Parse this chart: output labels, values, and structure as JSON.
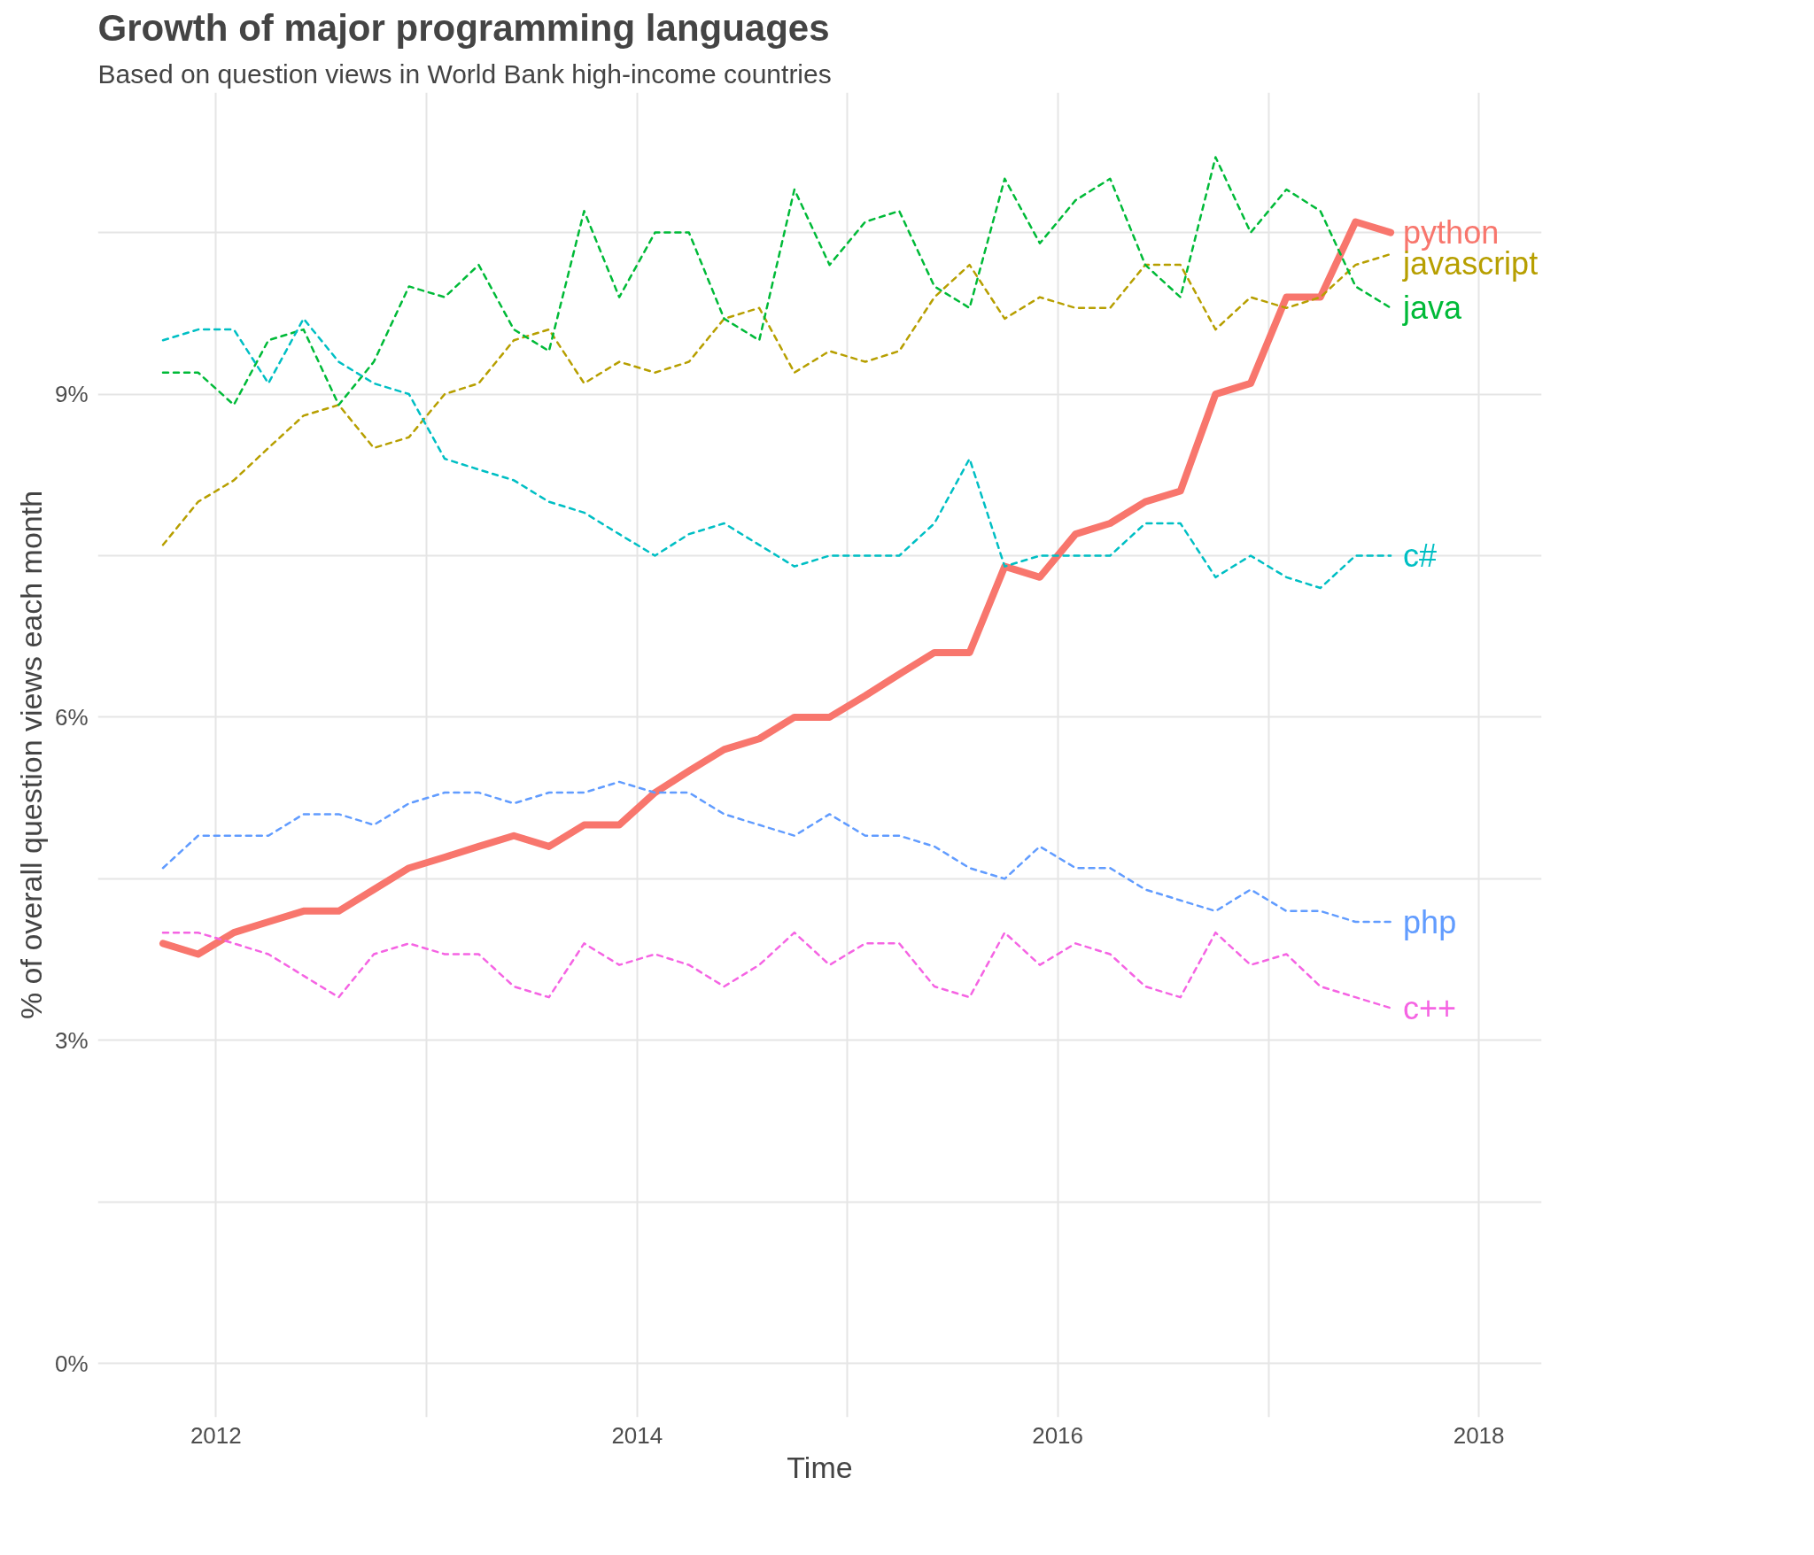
{
  "chart_data": {
    "type": "line",
    "title": "Growth of major programming languages",
    "subtitle": "Based on question views in World Bank high-income countries",
    "xlabel": "Time",
    "ylabel": "% of overall question views each month",
    "x": [
      "2011-10",
      "2011-12",
      "2012-02",
      "2012-04",
      "2012-06",
      "2012-08",
      "2012-10",
      "2012-12",
      "2013-02",
      "2013-04",
      "2013-06",
      "2013-08",
      "2013-10",
      "2013-12",
      "2014-02",
      "2014-04",
      "2014-06",
      "2014-08",
      "2014-10",
      "2014-12",
      "2015-02",
      "2015-04",
      "2015-06",
      "2015-08",
      "2015-10",
      "2015-12",
      "2016-02",
      "2016-04",
      "2016-06",
      "2016-08",
      "2016-10",
      "2016-12",
      "2017-02",
      "2017-04",
      "2017-06",
      "2017-08"
    ],
    "series": [
      {
        "name": "python",
        "color": "#f8766d",
        "line_style": "solid",
        "values": [
          3.9,
          3.8,
          4.0,
          4.1,
          4.2,
          4.2,
          4.4,
          4.6,
          4.7,
          4.8,
          4.9,
          4.8,
          5.0,
          5.0,
          5.3,
          5.5,
          5.7,
          5.8,
          6.0,
          6.0,
          6.2,
          6.4,
          6.6,
          6.6,
          7.4,
          7.3,
          7.7,
          7.8,
          8.0,
          8.1,
          9.0,
          9.1,
          9.9,
          9.9,
          10.6,
          10.5
        ]
      },
      {
        "name": "javascript",
        "color": "#b79f00",
        "line_style": "dashed",
        "values": [
          7.6,
          8.0,
          8.2,
          8.5,
          8.8,
          8.9,
          8.5,
          8.6,
          9.0,
          9.1,
          9.5,
          9.6,
          9.1,
          9.3,
          9.2,
          9.3,
          9.7,
          9.8,
          9.2,
          9.4,
          9.3,
          9.4,
          9.9,
          10.2,
          9.7,
          9.9,
          9.8,
          9.8,
          10.2,
          10.2,
          9.6,
          9.9,
          9.8,
          9.9,
          10.2,
          10.3
        ]
      },
      {
        "name": "java",
        "color": "#00ba38",
        "line_style": "dashed",
        "values": [
          9.2,
          9.2,
          8.9,
          9.5,
          9.6,
          8.9,
          9.3,
          10.0,
          9.9,
          10.2,
          9.6,
          9.4,
          10.7,
          9.9,
          10.5,
          10.5,
          9.7,
          9.5,
          10.9,
          10.2,
          10.6,
          10.7,
          10.0,
          9.8,
          11.0,
          10.4,
          10.8,
          11.0,
          10.2,
          9.9,
          11.2,
          10.5,
          10.9,
          10.7,
          10.0,
          9.8
        ]
      },
      {
        "name": "c#",
        "color": "#00bfc4",
        "line_style": "dashed",
        "values": [
          9.5,
          9.6,
          9.6,
          9.1,
          9.7,
          9.3,
          9.1,
          9.0,
          8.4,
          8.3,
          8.2,
          8.0,
          7.9,
          7.7,
          7.5,
          7.7,
          7.8,
          7.6,
          7.4,
          7.5,
          7.5,
          7.5,
          7.8,
          8.4,
          7.4,
          7.5,
          7.5,
          7.5,
          7.8,
          7.8,
          7.3,
          7.5,
          7.3,
          7.2,
          7.5,
          7.5
        ]
      },
      {
        "name": "php",
        "color": "#619cff",
        "line_style": "dashed",
        "values": [
          4.6,
          4.9,
          4.9,
          4.9,
          5.1,
          5.1,
          5.0,
          5.2,
          5.3,
          5.3,
          5.2,
          5.3,
          5.3,
          5.4,
          5.3,
          5.3,
          5.1,
          5.0,
          4.9,
          5.1,
          4.9,
          4.9,
          4.8,
          4.6,
          4.5,
          4.8,
          4.6,
          4.6,
          4.4,
          4.3,
          4.2,
          4.4,
          4.2,
          4.2,
          4.1,
          4.1
        ]
      },
      {
        "name": "c++",
        "color": "#f564e3",
        "line_style": "dashed",
        "values": [
          4.0,
          4.0,
          3.9,
          3.8,
          3.6,
          3.4,
          3.8,
          3.9,
          3.8,
          3.8,
          3.5,
          3.4,
          3.9,
          3.7,
          3.8,
          3.7,
          3.5,
          3.7,
          4.0,
          3.7,
          3.9,
          3.9,
          3.5,
          3.4,
          4.0,
          3.7,
          3.9,
          3.8,
          3.5,
          3.4,
          4.0,
          3.7,
          3.8,
          3.5,
          3.4,
          3.3
        ]
      }
    ],
    "xlim": [
      "2011-06-10",
      "2018-04-20"
    ],
    "xticks": [
      "2012",
      {
        "value": "2013",
        "label": null
      },
      "2014",
      {
        "value": "2015",
        "label": null
      },
      "2016",
      {
        "value": "2017",
        "label": null
      },
      "2018"
    ],
    "ylim": [
      -0.5,
      11.8
    ],
    "yticks": [
      {
        "value": 0,
        "label": "0%"
      },
      {
        "value": 1.5,
        "label": null
      },
      {
        "value": 3,
        "label": "3%"
      },
      {
        "value": 4.5,
        "label": null
      },
      {
        "value": 6,
        "label": "6%"
      },
      {
        "value": 7.5,
        "label": null
      },
      {
        "value": 9,
        "label": "9%"
      },
      {
        "value": 10.5,
        "label": null
      }
    ],
    "grid": true
  }
}
